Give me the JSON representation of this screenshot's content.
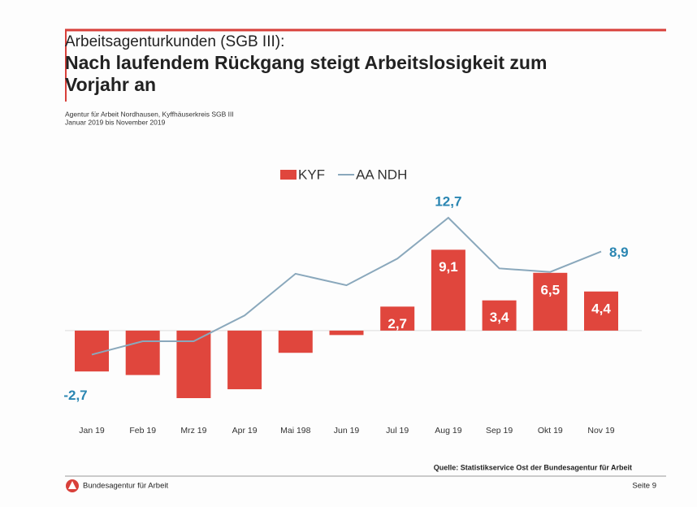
{
  "chart_data": {
    "type": "bar_line",
    "kicker": "Arbeitsagenturkunden (SGB III):",
    "title": "Nach laufendem Rückgang steigt Arbeitslosigkeit zum Vorjahr an",
    "subtitle": [
      "Agentur für Arbeit Nordhausen, Kyffhäuserkreis SGB III",
      "Januar 2019 bis November 2019"
    ],
    "categories": [
      "Jan 19",
      "Feb 19",
      "Mrz 19",
      "Apr 19",
      "Mai 198",
      "Jun 19",
      "Jul 19",
      "Aug 19",
      "Sep 19",
      "Okt 19",
      "Nov 19"
    ],
    "series": [
      {
        "name": "KYF",
        "type": "bar",
        "color": "#e0463d",
        "values": [
          -4.6,
          -5.0,
          -7.6,
          -6.6,
          -2.5,
          -0.5,
          2.7,
          9.1,
          3.4,
          6.5,
          4.4
        ],
        "value_labels": [
          null,
          null,
          null,
          null,
          null,
          null,
          "2,7",
          "9,1",
          "3,4",
          "6,5",
          "4,4"
        ]
      },
      {
        "name": "AA NDH",
        "type": "line",
        "color": "#8aa8bc",
        "values": [
          -2.7,
          -1.2,
          -1.2,
          1.7,
          6.4,
          5.1,
          8.1,
          12.7,
          7.0,
          6.6,
          8.9
        ],
        "value_labels": [
          "-2,7",
          null,
          null,
          null,
          null,
          null,
          null,
          "12,7",
          null,
          null,
          "8,9"
        ]
      }
    ],
    "source": "Quelle: Statistikservice Ost der Bundesagentur für Arbeit"
  },
  "footer": {
    "org": "Bundesagentur für Arbeit",
    "page": "Seite 9"
  }
}
